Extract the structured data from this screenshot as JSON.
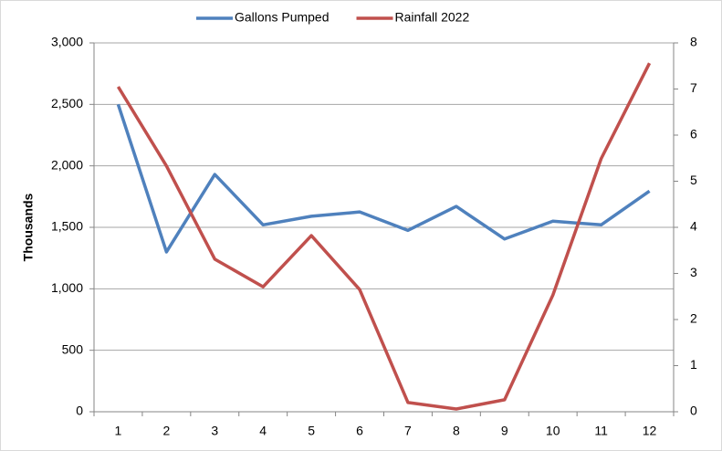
{
  "chart_data": {
    "type": "line",
    "categories": [
      1,
      2,
      3,
      4,
      5,
      6,
      7,
      8,
      9,
      10,
      11,
      12
    ],
    "series": [
      {
        "name": "Gallons Pumped",
        "color": "#4f81bd",
        "values": [
          2500,
          1300,
          1930,
          1520,
          1590,
          1625,
          1475,
          1670,
          1405,
          1550,
          1520,
          1795
        ]
      },
      {
        "name": "Rainfall 2022",
        "color": "#c0504d",
        "axis": "y2",
        "values": [
          7.05,
          5.33,
          3.31,
          2.71,
          3.82,
          2.65,
          0.2,
          0.06,
          0.26,
          2.53,
          5.49,
          7.56
        ]
      }
    ],
    "ylabel": "Thousands",
    "ylim": [
      0,
      3000
    ],
    "yticks": [
      0,
      500,
      {
        "value": 1000,
        "label": "1,000"
      },
      {
        "value": 1500,
        "label": "1,500"
      },
      {
        "value": 2000,
        "label": "2,000"
      },
      {
        "value": 2500,
        "label": "2,500"
      },
      {
        "value": 3000,
        "label": "3,000"
      }
    ],
    "y2lim": [
      0,
      8
    ],
    "y2ticks": [
      0,
      1,
      2,
      3,
      4,
      5,
      6,
      7,
      8
    ],
    "grid": true,
    "legend": "top"
  }
}
